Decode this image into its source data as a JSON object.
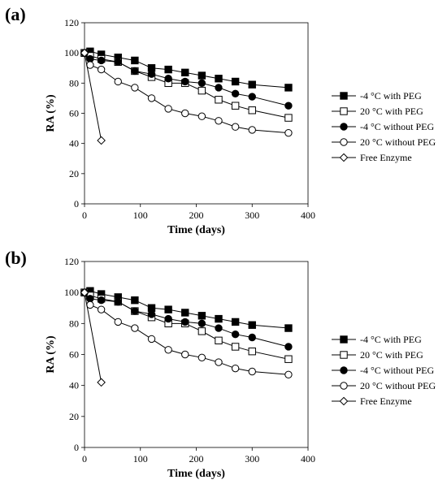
{
  "chart_data": [
    {
      "panel_label": "(a)",
      "type": "line",
      "xlabel": "Time (days)",
      "ylabel": "RA (%)",
      "xlim": [
        0,
        400
      ],
      "ylim": [
        0,
        120
      ],
      "xticks": [
        0,
        100,
        200,
        300,
        400
      ],
      "yticks": [
        0,
        20,
        40,
        60,
        80,
        100,
        120
      ],
      "grid": false,
      "legend_position": "right",
      "series": [
        {
          "name": "-4 °C with PEG",
          "marker": "square-filled",
          "x": [
            0,
            10,
            30,
            60,
            90,
            120,
            150,
            180,
            210,
            240,
            270,
            300,
            365
          ],
          "y": [
            100,
            101,
            99,
            97,
            95,
            90,
            89,
            87,
            85,
            83,
            81,
            79,
            77
          ]
        },
        {
          "name": "20 °C with PEG",
          "marker": "square-open",
          "x": [
            0,
            10,
            30,
            60,
            90,
            120,
            150,
            180,
            210,
            240,
            270,
            300,
            365
          ],
          "y": [
            100,
            98,
            96,
            94,
            88,
            84,
            80,
            80,
            75,
            69,
            65,
            62,
            57
          ]
        },
        {
          "name": "-4 °C without PEG",
          "marker": "circle-filled",
          "x": [
            0,
            10,
            30,
            60,
            90,
            120,
            150,
            180,
            210,
            240,
            270,
            300,
            365
          ],
          "y": [
            100,
            96,
            95,
            94,
            88,
            86,
            83,
            81,
            80,
            77,
            73,
            71,
            65
          ]
        },
        {
          "name": "20 °C without PEG",
          "marker": "circle-open",
          "x": [
            0,
            10,
            30,
            60,
            90,
            120,
            150,
            180,
            210,
            240,
            270,
            300,
            365
          ],
          "y": [
            100,
            92,
            89,
            81,
            77,
            70,
            63,
            60,
            58,
            55,
            51,
            49,
            47
          ]
        },
        {
          "name": "Free Enzyme",
          "marker": "diamond-open",
          "x": [
            0,
            30
          ],
          "y": [
            100,
            42
          ]
        }
      ]
    },
    {
      "panel_label": "(b)",
      "type": "line",
      "xlabel": "Time (days)",
      "ylabel": "RA (%)",
      "xlim": [
        0,
        400
      ],
      "ylim": [
        0,
        120
      ],
      "xticks": [
        0,
        100,
        200,
        300,
        400
      ],
      "yticks": [
        0,
        20,
        40,
        60,
        80,
        100,
        120
      ],
      "grid": false,
      "legend_position": "right",
      "series": [
        {
          "name": "-4 °C with PEG",
          "marker": "square-filled",
          "x": [
            0,
            10,
            30,
            60,
            90,
            120,
            150,
            180,
            210,
            240,
            270,
            300,
            365
          ],
          "y": [
            100,
            101,
            99,
            97,
            95,
            90,
            89,
            87,
            85,
            83,
            81,
            79,
            77
          ]
        },
        {
          "name": "20 °C with PEG",
          "marker": "square-open",
          "x": [
            0,
            10,
            30,
            60,
            90,
            120,
            150,
            180,
            210,
            240,
            270,
            300,
            365
          ],
          "y": [
            100,
            98,
            96,
            94,
            88,
            84,
            80,
            80,
            75,
            69,
            65,
            62,
            57
          ]
        },
        {
          "name": "-4 °C without PEG",
          "marker": "circle-filled",
          "x": [
            0,
            10,
            30,
            60,
            90,
            120,
            150,
            180,
            210,
            240,
            270,
            300,
            365
          ],
          "y": [
            100,
            96,
            95,
            94,
            88,
            86,
            83,
            81,
            80,
            77,
            73,
            71,
            65
          ]
        },
        {
          "name": "20 °C without PEG",
          "marker": "circle-open",
          "x": [
            0,
            10,
            30,
            60,
            90,
            120,
            150,
            180,
            210,
            240,
            270,
            300,
            365
          ],
          "y": [
            100,
            92,
            89,
            81,
            77,
            70,
            63,
            60,
            58,
            55,
            51,
            49,
            47
          ]
        },
        {
          "name": "Free Enzyme",
          "marker": "diamond-open",
          "x": [
            0,
            30
          ],
          "y": [
            100,
            42
          ]
        }
      ]
    }
  ]
}
